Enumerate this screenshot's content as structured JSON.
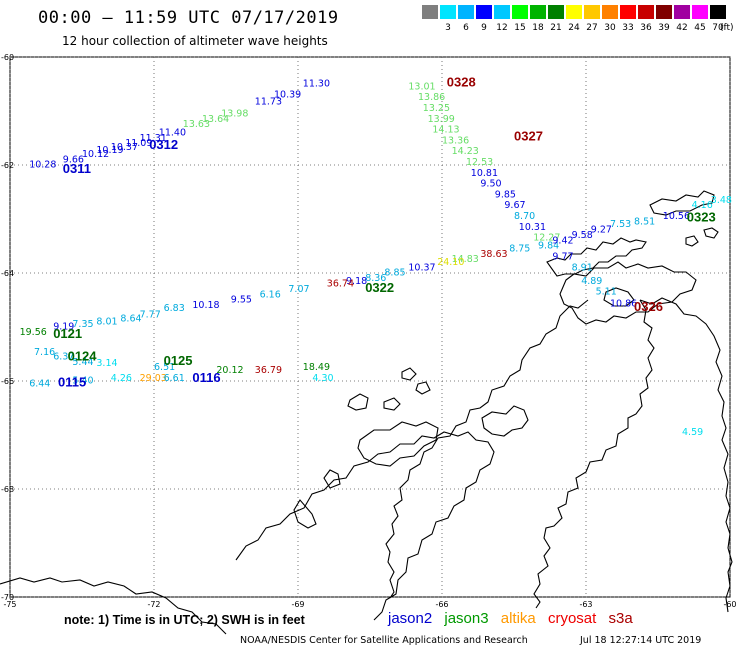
{
  "header": {
    "title": "00:00 – 11:59 UTC 07/17/2019",
    "subtitle": "12 hour collection of altimeter wave heights"
  },
  "legend": {
    "unit": "(ft)",
    "bins": [
      {
        "label": "",
        "color": "#7f7f7f"
      },
      {
        "label": "3",
        "color": "#00e5ff"
      },
      {
        "label": "6",
        "color": "#00b4ff"
      },
      {
        "label": "9",
        "color": "#0000ff"
      },
      {
        "label": "12",
        "color": "#00c8ff"
      },
      {
        "label": "15",
        "color": "#00ff00"
      },
      {
        "label": "18",
        "color": "#00b400"
      },
      {
        "label": "21",
        "color": "#008000"
      },
      {
        "label": "24",
        "color": "#ffff00"
      },
      {
        "label": "27",
        "color": "#ffc800"
      },
      {
        "label": "30",
        "color": "#ff8000"
      },
      {
        "label": "33",
        "color": "#ff0000"
      },
      {
        "label": "36",
        "color": "#c80000"
      },
      {
        "label": "39",
        "color": "#800000"
      },
      {
        "label": "42",
        "color": "#a000a0"
      },
      {
        "label": "45",
        "color": "#ff00ff"
      },
      {
        "label": "70",
        "color": "#000000"
      }
    ]
  },
  "axes": {
    "lat_labels": [
      "-60",
      "-62",
      "-64",
      "-66",
      "-68",
      "-70"
    ],
    "lon_labels": [
      "-75",
      "-72",
      "-69",
      "-66",
      "-63",
      "-60"
    ]
  },
  "observations": [
    {
      "text": "10.28",
      "lon": -74.6,
      "lat": -62.05,
      "color": "#0000dd"
    },
    {
      "text": "9.66",
      "lon": -73.9,
      "lat": -61.95,
      "color": "#0000dd"
    },
    {
      "text": "10.12",
      "lon": -73.5,
      "lat": -61.85,
      "color": "#0000dd"
    },
    {
      "text": "10.19",
      "lon": -73.2,
      "lat": -61.78,
      "color": "#0000dd"
    },
    {
      "text": "10.37",
      "lon": -72.9,
      "lat": -61.72,
      "color": "#0000dd"
    },
    {
      "text": "11.09",
      "lon": -72.6,
      "lat": -61.65,
      "color": "#0000dd"
    },
    {
      "text": "11.31",
      "lon": -72.3,
      "lat": -61.56,
      "color": "#0000dd"
    },
    {
      "text": "11.40",
      "lon": -71.9,
      "lat": -61.45,
      "color": "#0000dd"
    },
    {
      "text": "13.63",
      "lon": -71.4,
      "lat": -61.3,
      "color": "#66dd66"
    },
    {
      "text": "13.64",
      "lon": -71.0,
      "lat": -61.2,
      "color": "#66dd66"
    },
    {
      "text": "13.98",
      "lon": -70.6,
      "lat": -61.1,
      "color": "#66dd66"
    },
    {
      "text": "11.73",
      "lon": -69.9,
      "lat": -60.88,
      "color": "#0000dd"
    },
    {
      "text": "10.39",
      "lon": -69.5,
      "lat": -60.75,
      "color": "#0000dd"
    },
    {
      "text": "11.30",
      "lon": -68.9,
      "lat": -60.55,
      "color": "#0000dd"
    },
    {
      "text": "13.01",
      "lon": -66.7,
      "lat": -60.6,
      "color": "#66dd66"
    },
    {
      "text": "13.86",
      "lon": -66.5,
      "lat": -60.8,
      "color": "#66dd66"
    },
    {
      "text": "13.25",
      "lon": -66.4,
      "lat": -61.0,
      "color": "#66dd66"
    },
    {
      "text": "13.99",
      "lon": -66.3,
      "lat": -61.2,
      "color": "#66dd66"
    },
    {
      "text": "14.13",
      "lon": -66.2,
      "lat": -61.4,
      "color": "#66dd66"
    },
    {
      "text": "13.36",
      "lon": -66.0,
      "lat": -61.6,
      "color": "#66dd66"
    },
    {
      "text": "14.23",
      "lon": -65.8,
      "lat": -61.8,
      "color": "#66dd66"
    },
    {
      "text": "12.53",
      "lon": -65.5,
      "lat": -62.0,
      "color": "#66dd66"
    },
    {
      "text": "10.81",
      "lon": -65.4,
      "lat": -62.2,
      "color": "#0000dd"
    },
    {
      "text": "9.50",
      "lon": -65.2,
      "lat": -62.4,
      "color": "#0000dd"
    },
    {
      "text": "9.85",
      "lon": -64.9,
      "lat": -62.6,
      "color": "#0000dd"
    },
    {
      "text": "9.67",
      "lon": -64.7,
      "lat": -62.8,
      "color": "#0000dd"
    },
    {
      "text": "8.70",
      "lon": -64.5,
      "lat": -63.0,
      "color": "#00aadd"
    },
    {
      "text": "10.31",
      "lon": -64.4,
      "lat": -63.2,
      "color": "#0000dd"
    },
    {
      "text": "12.27",
      "lon": -64.1,
      "lat": -63.4,
      "color": "#66dd66"
    },
    {
      "text": "9.84",
      "lon": -64.0,
      "lat": -63.55,
      "color": "#00aadd"
    },
    {
      "text": "9.77",
      "lon": -63.7,
      "lat": -63.75,
      "color": "#0000dd"
    },
    {
      "text": "8.91",
      "lon": -63.3,
      "lat": -63.95,
      "color": "#00aadd"
    },
    {
      "text": "4.89",
      "lon": -63.1,
      "lat": -64.2,
      "color": "#00aadd"
    },
    {
      "text": "5.11",
      "lon": -62.8,
      "lat": -64.4,
      "color": "#00aadd"
    },
    {
      "text": "10.86",
      "lon": -62.5,
      "lat": -64.62,
      "color": "#0000dd"
    },
    {
      "text": "9.42",
      "lon": -63.7,
      "lat": -63.45,
      "color": "#0000dd"
    },
    {
      "text": "9.58",
      "lon": -63.3,
      "lat": -63.35,
      "color": "#0000dd"
    },
    {
      "text": "9.27",
      "lon": -62.9,
      "lat": -63.25,
      "color": "#0000dd"
    },
    {
      "text": "7.53",
      "lon": -62.5,
      "lat": -63.15,
      "color": "#00aadd"
    },
    {
      "text": "8.51",
      "lon": -62.0,
      "lat": -63.1,
      "color": "#00aadd"
    },
    {
      "text": "10.56",
      "lon": -61.4,
      "lat": -63.0,
      "color": "#0000dd"
    },
    {
      "text": "4.16",
      "lon": -60.8,
      "lat": -62.8,
      "color": "#00ddee"
    },
    {
      "text": "3.48",
      "lon": -60.4,
      "lat": -62.7,
      "color": "#00ddee"
    },
    {
      "text": "8.75",
      "lon": -64.6,
      "lat": -63.6,
      "color": "#00aadd"
    },
    {
      "text": "38.63",
      "lon": -65.2,
      "lat": -63.7,
      "color": "#aa0000"
    },
    {
      "text": "14.83",
      "lon": -65.8,
      "lat": -63.8,
      "color": "#66dd66"
    },
    {
      "text": "24.10",
      "lon": -66.1,
      "lat": -63.85,
      "color": "#dddd00"
    },
    {
      "text": "10.37",
      "lon": -66.7,
      "lat": -63.95,
      "color": "#0000dd"
    },
    {
      "text": "8.85",
      "lon": -67.2,
      "lat": -64.05,
      "color": "#00aadd"
    },
    {
      "text": "8.36",
      "lon": -67.6,
      "lat": -64.15,
      "color": "#00aadd"
    },
    {
      "text": "9.18",
      "lon": -68.0,
      "lat": -64.2,
      "color": "#0000dd"
    },
    {
      "text": "36.74",
      "lon": -68.4,
      "lat": -64.25,
      "color": "#aa0000"
    },
    {
      "text": "7.07",
      "lon": -69.2,
      "lat": -64.35,
      "color": "#00aadd"
    },
    {
      "text": "6.16",
      "lon": -69.8,
      "lat": -64.45,
      "color": "#00aadd"
    },
    {
      "text": "9.55",
      "lon": -70.4,
      "lat": -64.55,
      "color": "#0000dd"
    },
    {
      "text": "10.18",
      "lon": -71.2,
      "lat": -64.65,
      "color": "#0000dd"
    },
    {
      "text": "6.83",
      "lon": -71.8,
      "lat": -64.7,
      "color": "#00aadd"
    },
    {
      "text": "7.77",
      "lon": -72.3,
      "lat": -64.82,
      "color": "#00aadd"
    },
    {
      "text": "8.64",
      "lon": -72.7,
      "lat": -64.9,
      "color": "#00aadd"
    },
    {
      "text": "8.01",
      "lon": -73.2,
      "lat": -64.95,
      "color": "#00aadd"
    },
    {
      "text": "7.35",
      "lon": -73.7,
      "lat": -65.0,
      "color": "#00aadd"
    },
    {
      "text": "9.19",
      "lon": -74.1,
      "lat": -65.05,
      "color": "#0000dd"
    },
    {
      "text": "19.56",
      "lon": -74.8,
      "lat": -65.15,
      "color": "#008000"
    },
    {
      "text": "7.16",
      "lon": -74.5,
      "lat": -65.52,
      "color": "#00aadd"
    },
    {
      "text": "6.37",
      "lon": -74.1,
      "lat": -65.6,
      "color": "#00aadd"
    },
    {
      "text": "5.44",
      "lon": -73.7,
      "lat": -65.7,
      "color": "#00aadd"
    },
    {
      "text": "3.14",
      "lon": -73.2,
      "lat": -65.72,
      "color": "#00ddee"
    },
    {
      "text": "6.44",
      "lon": -74.6,
      "lat": -66.1,
      "color": "#00aadd"
    },
    {
      "text": "5.40",
      "lon": -73.7,
      "lat": -66.05,
      "color": "#00aadd"
    },
    {
      "text": "4.26",
      "lon": -72.9,
      "lat": -66.0,
      "color": "#00ddee"
    },
    {
      "text": "29.03",
      "lon": -72.3,
      "lat": -66.0,
      "color": "#ffa000"
    },
    {
      "text": "6.61",
      "lon": -71.8,
      "lat": -66.0,
      "color": "#00aadd"
    },
    {
      "text": "6.51",
      "lon": -72.0,
      "lat": -65.8,
      "color": "#00aadd"
    },
    {
      "text": "20.12",
      "lon": -70.7,
      "lat": -65.85,
      "color": "#008000"
    },
    {
      "text": "36.79",
      "lon": -69.9,
      "lat": -65.85,
      "color": "#aa0000"
    },
    {
      "text": "18.49",
      "lon": -68.9,
      "lat": -65.8,
      "color": "#008000"
    },
    {
      "text": "4.30",
      "lon": -68.7,
      "lat": -66.0,
      "color": "#00ddee"
    },
    {
      "text": "4.59",
      "lon": -61.0,
      "lat": -67.0,
      "color": "#00ddee"
    }
  ],
  "passes": [
    {
      "text": "0311",
      "lon": -73.9,
      "lat": -62.15,
      "color": "#0000cc"
    },
    {
      "text": "0312",
      "lon": -72.1,
      "lat": -61.7,
      "color": "#0000cc"
    },
    {
      "text": "0328",
      "lon": -65.9,
      "lat": -60.55,
      "color": "#990000"
    },
    {
      "text": "0327",
      "lon": -64.5,
      "lat": -61.55,
      "color": "#990000"
    },
    {
      "text": "0323",
      "lon": -60.9,
      "lat": -63.05,
      "color": "#006600"
    },
    {
      "text": "0322",
      "lon": -67.6,
      "lat": -64.35,
      "color": "#006600"
    },
    {
      "text": "0326",
      "lon": -62.0,
      "lat": -64.7,
      "color": "#990000"
    },
    {
      "text": "0121",
      "lon": -74.1,
      "lat": -65.2,
      "color": "#006600"
    },
    {
      "text": "0124",
      "lon": -73.8,
      "lat": -65.62,
      "color": "#006600"
    },
    {
      "text": "0125",
      "lon": -71.8,
      "lat": -65.7,
      "color": "#006600"
    },
    {
      "text": "0115",
      "lon": -74.0,
      "lat": -66.1,
      "color": "#0000cc"
    },
    {
      "text": "0116",
      "lon": -71.2,
      "lat": -66.02,
      "color": "#0000cc"
    }
  ],
  "footer": {
    "note": "note: 1) Time is in UTC; 2) SWH is in feet",
    "satellites": [
      {
        "name": "jason2",
        "color": "#0000cc"
      },
      {
        "name": "jason3",
        "color": "#009900"
      },
      {
        "name": "altika",
        "color": "#ff9900"
      },
      {
        "name": "cryosat",
        "color": "#ee0000"
      },
      {
        "name": "s3a",
        "color": "#aa0000"
      }
    ],
    "credit": "NOAA/NESDIS Center for Satellite Applications and Research",
    "timestamp": "Jul 18 12:27:14 UTC 2019"
  }
}
